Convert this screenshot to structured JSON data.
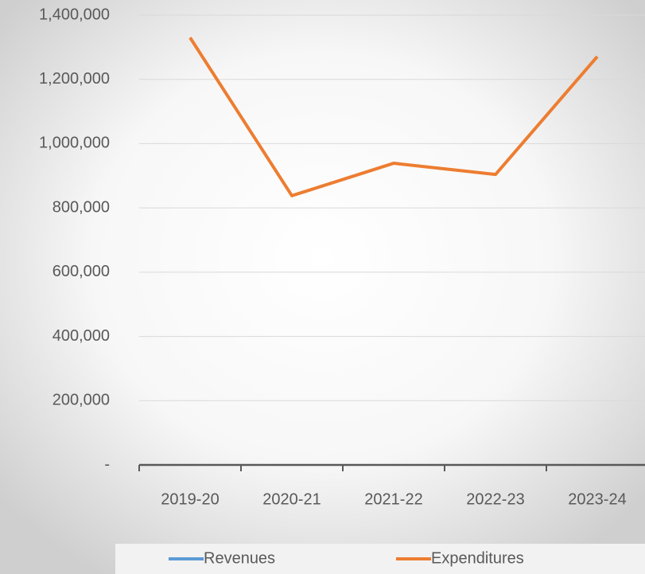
{
  "chart_data": {
    "type": "line",
    "categories": [
      "2019-20",
      "2020-21",
      "2021-22",
      "2022-23",
      "2023-24"
    ],
    "series": [
      {
        "name": "Revenues",
        "color": "#5b9bd5",
        "values": [
          null,
          null,
          null,
          null,
          null
        ]
      },
      {
        "name": "Expenditures",
        "color": "#ed7d31",
        "values": [
          1330000,
          838000,
          939000,
          904000,
          1271000
        ]
      }
    ],
    "ylim": [
      0,
      1400000
    ],
    "yticks": [
      {
        "value": 0,
        "label": "-"
      },
      {
        "value": 200000,
        "label": "200,000"
      },
      {
        "value": 400000,
        "label": "400,000"
      },
      {
        "value": 600000,
        "label": "600,000"
      },
      {
        "value": 800000,
        "label": "800,000"
      },
      {
        "value": 1000000,
        "label": "1,000,000"
      },
      {
        "value": 1200000,
        "label": "1,200,000"
      },
      {
        "value": 1400000,
        "label": "1,400,000"
      }
    ],
    "grid": true,
    "legend": "bottom"
  }
}
